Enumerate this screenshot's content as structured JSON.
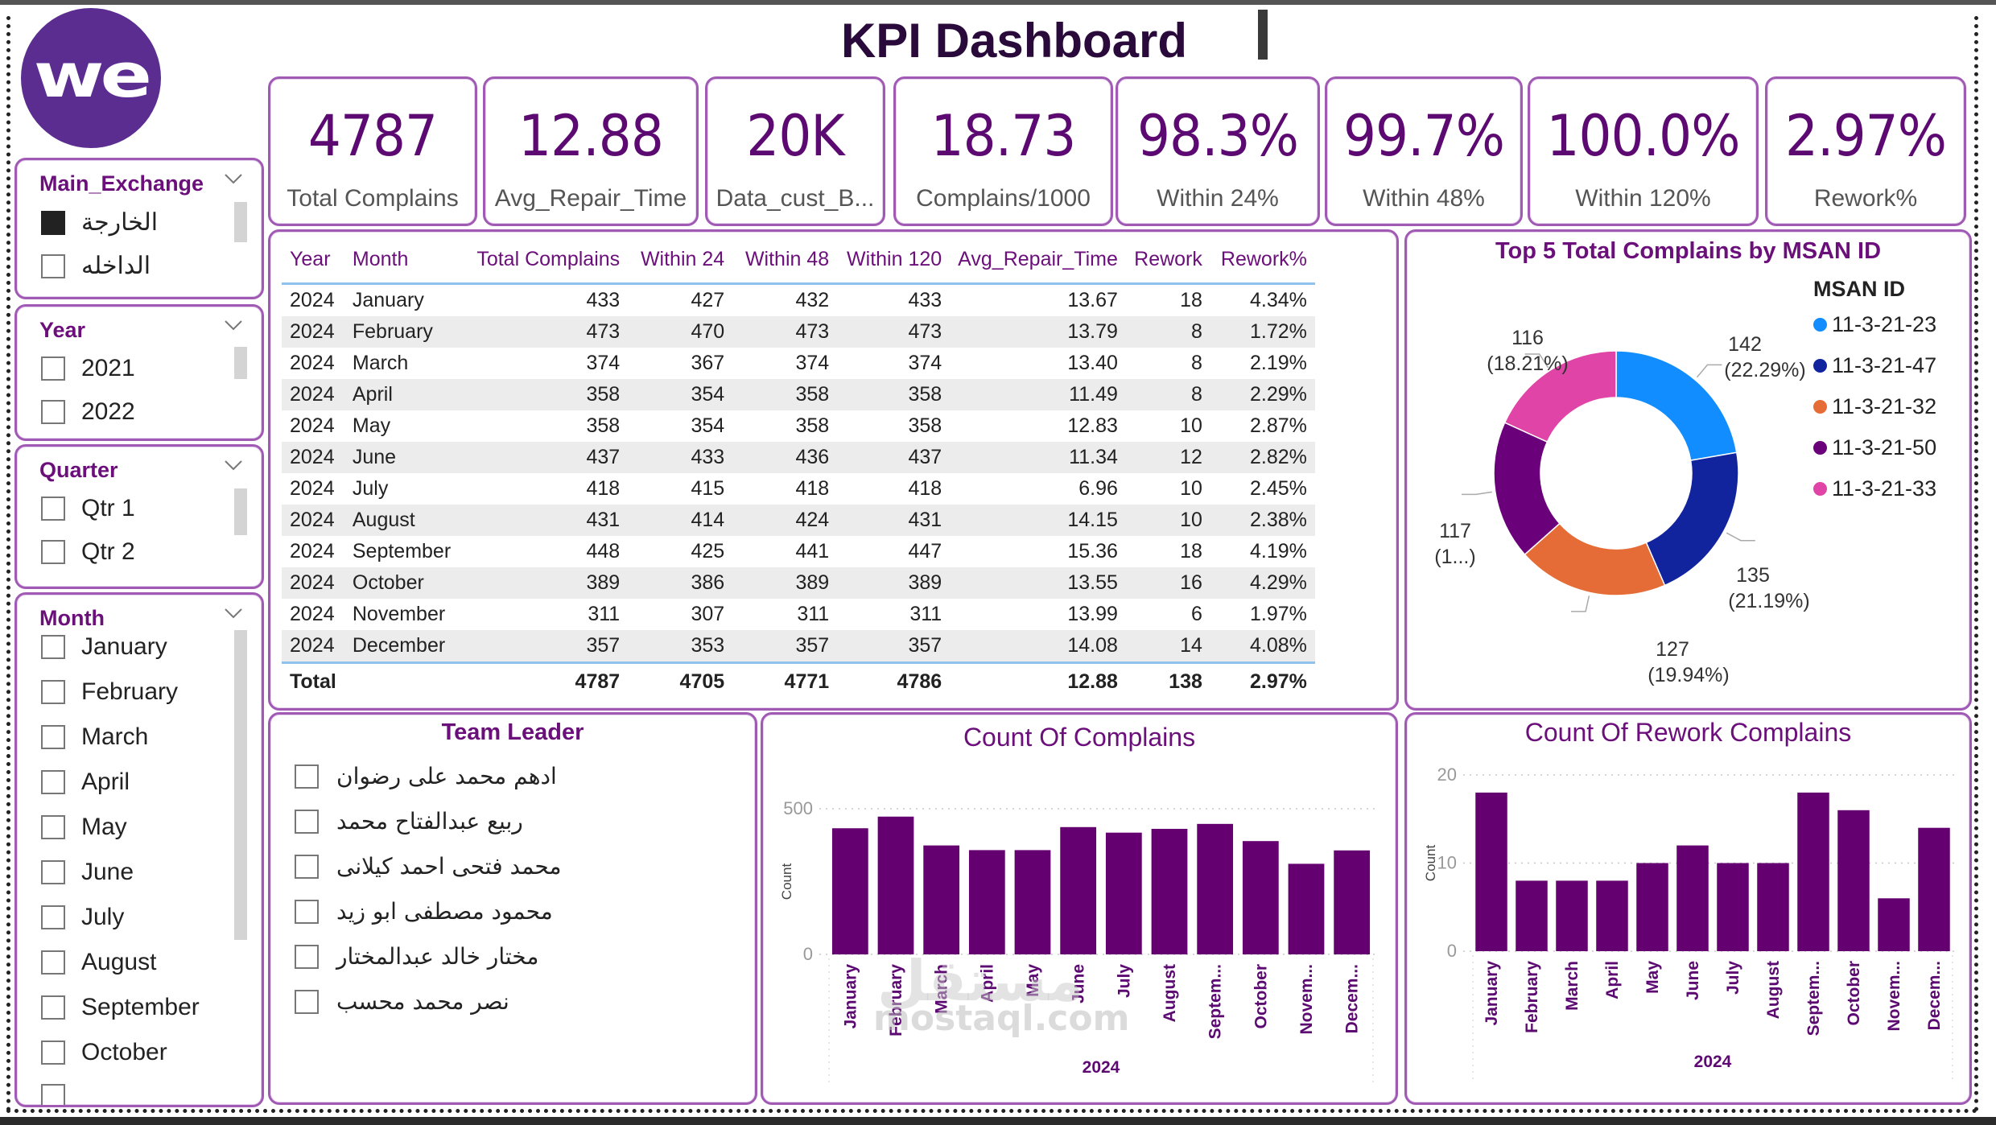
{
  "header": {
    "title": "KPI Dashboard",
    "logo_text": "we"
  },
  "colors": {
    "brand_purple": "#5b2d90",
    "accent_purple": "#6b0f7a",
    "bar_purple": "#650070",
    "panel_border": "#a05ab4"
  },
  "slicers": {
    "main_exchange": {
      "title": "Main_Exchange",
      "items": [
        {
          "label": "الخارجة",
          "checked": true
        },
        {
          "label": "الداخله",
          "checked": false
        }
      ]
    },
    "year": {
      "title": "Year",
      "items": [
        {
          "label": "2021",
          "checked": false
        },
        {
          "label": "2022",
          "checked": false
        }
      ]
    },
    "quarter": {
      "title": "Quarter",
      "items": [
        {
          "label": "Qtr 1",
          "checked": false
        },
        {
          "label": "Qtr 2",
          "checked": false
        }
      ]
    },
    "month": {
      "title": "Month",
      "items": [
        {
          "label": "January",
          "checked": false
        },
        {
          "label": "February",
          "checked": false
        },
        {
          "label": "March",
          "checked": false
        },
        {
          "label": "April",
          "checked": false
        },
        {
          "label": "May",
          "checked": false
        },
        {
          "label": "June",
          "checked": false
        },
        {
          "label": "July",
          "checked": false
        },
        {
          "label": "August",
          "checked": false
        },
        {
          "label": "September",
          "checked": false
        },
        {
          "label": "October",
          "checked": false
        }
      ]
    }
  },
  "kpis": [
    {
      "value": "4787",
      "label": "Total Complains"
    },
    {
      "value": "12.88",
      "label": "Avg_Repair_Time"
    },
    {
      "value": "20K",
      "label": "Data_cust_B..."
    },
    {
      "value": "18.73",
      "label": "Complains/1000"
    },
    {
      "value": "98.3%",
      "label": "Within 24%"
    },
    {
      "value": "99.7%",
      "label": "Within 48%"
    },
    {
      "value": "100.0%",
      "label": "Within 120%"
    },
    {
      "value": "2.97%",
      "label": "Rework%"
    }
  ],
  "table": {
    "columns": [
      "Year",
      "Month",
      "Total Complains",
      "Within 24",
      "Within 48",
      "Within 120",
      "Avg_Repair_Time",
      "Rework",
      "Rework%"
    ],
    "sorted_column": "Month",
    "rows": [
      [
        "2024",
        "January",
        "433",
        "427",
        "432",
        "433",
        "13.67",
        "18",
        "4.34%"
      ],
      [
        "2024",
        "February",
        "473",
        "470",
        "473",
        "473",
        "13.79",
        "8",
        "1.72%"
      ],
      [
        "2024",
        "March",
        "374",
        "367",
        "374",
        "374",
        "13.40",
        "8",
        "2.19%"
      ],
      [
        "2024",
        "April",
        "358",
        "354",
        "358",
        "358",
        "11.49",
        "8",
        "2.29%"
      ],
      [
        "2024",
        "May",
        "358",
        "354",
        "358",
        "358",
        "12.83",
        "10",
        "2.87%"
      ],
      [
        "2024",
        "June",
        "437",
        "433",
        "436",
        "437",
        "11.34",
        "12",
        "2.82%"
      ],
      [
        "2024",
        "July",
        "418",
        "415",
        "418",
        "418",
        "6.96",
        "10",
        "2.45%"
      ],
      [
        "2024",
        "August",
        "431",
        "414",
        "424",
        "431",
        "14.15",
        "10",
        "2.38%"
      ],
      [
        "2024",
        "September",
        "448",
        "425",
        "441",
        "447",
        "15.36",
        "18",
        "4.19%"
      ],
      [
        "2024",
        "October",
        "389",
        "386",
        "389",
        "389",
        "13.55",
        "16",
        "4.29%"
      ],
      [
        "2024",
        "November",
        "311",
        "307",
        "311",
        "311",
        "13.99",
        "6",
        "1.97%"
      ],
      [
        "2024",
        "December",
        "357",
        "353",
        "357",
        "357",
        "14.08",
        "14",
        "4.08%"
      ]
    ],
    "total": [
      "Total",
      "",
      "4787",
      "4705",
      "4771",
      "4786",
      "12.88",
      "138",
      "2.97%"
    ]
  },
  "team_leader": {
    "title": "Team Leader",
    "items": [
      {
        "label": "ادهم محمد على رضوان",
        "checked": false
      },
      {
        "label": "ربيع عبدالفتاح محمد",
        "checked": false
      },
      {
        "label": "محمد فتحى احمد كيلانى",
        "checked": false
      },
      {
        "label": "محمود مصطفى ابو زيد",
        "checked": false
      },
      {
        "label": "مختار خالد عبدالمختار",
        "checked": false
      },
      {
        "label": "نصر محمد محسب",
        "checked": false
      }
    ]
  },
  "watermark": {
    "arabic": "مستقل",
    "latin": "mostaql.com"
  },
  "chart_data": [
    {
      "type": "pie",
      "variant": "donut",
      "title": "Top 5 Total Complains by MSAN ID",
      "legend_title": "MSAN ID",
      "legend_position": "right",
      "slices": [
        {
          "label": "11-3-21-23",
          "value": 142,
          "percent_label": "(22.29%)",
          "color": "#118dff"
        },
        {
          "label": "11-3-21-47",
          "value": 135,
          "percent_label": "(21.19%)",
          "color": "#12239e"
        },
        {
          "label": "11-3-21-32",
          "value": 127,
          "percent_label": "(19.94%)",
          "color": "#e66c37"
        },
        {
          "label": "11-3-21-50",
          "value": 117,
          "percent_label": "(1...)",
          "color": "#6b007b"
        },
        {
          "label": "11-3-21-33",
          "value": 116,
          "percent_label": "(18.21%)",
          "color": "#e044a7"
        }
      ]
    },
    {
      "type": "bar",
      "title": "Count Of Complains",
      "xlabel": "2024",
      "ylabel": "Count",
      "ylim": [
        0,
        500
      ],
      "yticks": [
        0,
        500
      ],
      "grid": true,
      "categories": [
        "January",
        "February",
        "March",
        "April",
        "May",
        "June",
        "July",
        "August",
        "Septem...",
        "October",
        "Novem...",
        "Decem..."
      ],
      "values": [
        433,
        473,
        374,
        358,
        358,
        437,
        418,
        431,
        448,
        389,
        311,
        357
      ],
      "color": "#650070"
    },
    {
      "type": "bar",
      "title": "Count Of Rework Complains",
      "xlabel": "2024",
      "ylabel": "Count",
      "ylim": [
        0,
        20
      ],
      "yticks": [
        0,
        10,
        20
      ],
      "grid": true,
      "categories": [
        "January",
        "February",
        "March",
        "April",
        "May",
        "June",
        "July",
        "August",
        "Septem...",
        "October",
        "Novem...",
        "Decem..."
      ],
      "values": [
        18,
        8,
        8,
        8,
        10,
        12,
        10,
        10,
        18,
        16,
        6,
        14
      ],
      "color": "#650070"
    }
  ]
}
